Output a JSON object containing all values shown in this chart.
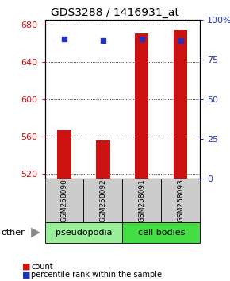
{
  "title": "GDS3288 / 1416931_at",
  "samples": [
    "GSM258090",
    "GSM258092",
    "GSM258091",
    "GSM258093"
  ],
  "groups": [
    "pseudopodia",
    "pseudopodia",
    "cell bodies",
    "cell bodies"
  ],
  "count_values": [
    567,
    556,
    670,
    674
  ],
  "percentile_values": [
    88,
    87,
    88,
    87
  ],
  "ylim_left": [
    515,
    685
  ],
  "ylim_right": [
    0,
    100
  ],
  "yticks_left": [
    520,
    560,
    600,
    640,
    680
  ],
  "yticks_right": [
    0,
    25,
    50,
    75,
    100
  ],
  "bar_color": "#cc1111",
  "dot_color": "#2233bb",
  "pseudopodia_color": "#99ee99",
  "cell_bodies_color": "#44dd44",
  "gray_box_color": "#cccccc",
  "legend_count_label": "count",
  "legend_pct_label": "percentile rank within the sample",
  "other_label": "other",
  "title_fontsize": 10,
  "axis_label_color_left": "#cc1111",
  "axis_label_color_right": "#2233bb",
  "right_tick_labels": [
    "0",
    "25",
    "50",
    "75",
    "100%"
  ],
  "bar_width": 0.35
}
